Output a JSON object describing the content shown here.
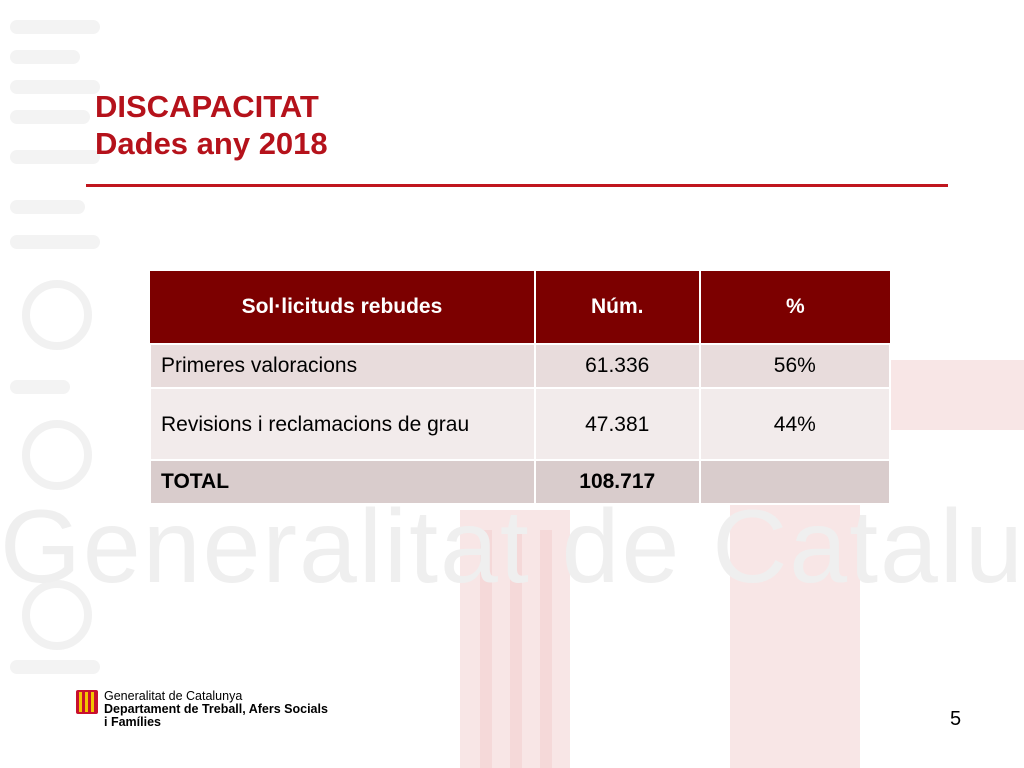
{
  "slide": {
    "title_line1": "DISCAPACITAT",
    "title_line2": "Dades any 2018",
    "page_number": "5"
  },
  "table": {
    "headers": [
      "Sol·licituds rebudes",
      "Núm.",
      "%"
    ],
    "rows": [
      {
        "label": "Primeres valoracions",
        "num": "61.336",
        "pct": "56%"
      },
      {
        "label": "Revisions i reclamacions de grau",
        "num": "47.381",
        "pct": "44%"
      },
      {
        "label": "TOTAL",
        "num": "108.717",
        "pct": ""
      }
    ]
  },
  "footer": {
    "org_line1": "Generalitat de Catalunya",
    "org_line2": "Departament de Treball, Afers Socials",
    "org_line3": "i Famílies"
  },
  "watermark": {
    "text": "Generalitat de Catalunya"
  },
  "colors": {
    "title": "#b5121b",
    "header_bg": "#7c0000",
    "rule": "#c0161e"
  },
  "icons": {
    "logo": "generalitat-senyera-icon"
  }
}
